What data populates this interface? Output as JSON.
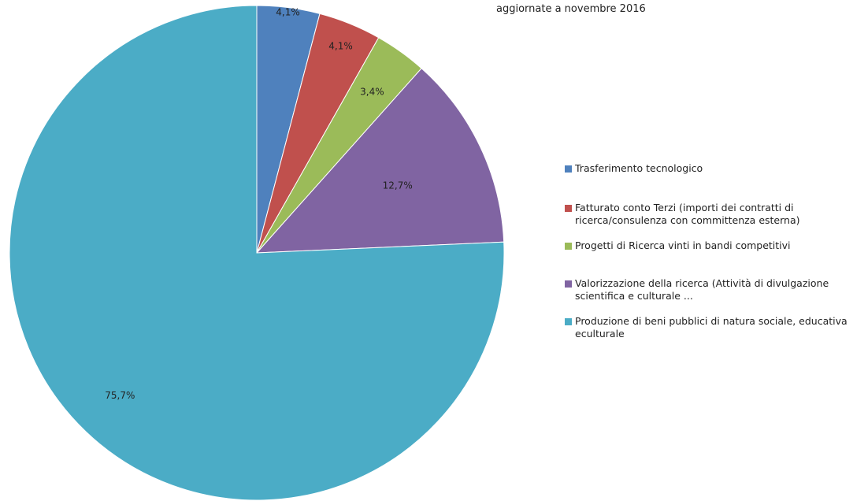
{
  "subtitle": "aggiornate a novembre 2016",
  "chart_data": {
    "type": "pie",
    "title": "",
    "subtitle": "aggiornate a novembre 2016",
    "unit": "%",
    "legend_position": "right",
    "slices": [
      {
        "name": "Trasferimento tecnologico",
        "value": 4.1,
        "label": "4,1%",
        "color": "#4f81bd"
      },
      {
        "name": "Fatturato  conto Terzi (importi dei contratti  di\nricerca/consulenza con committenza  esterna)",
        "value": 4.1,
        "label": "4,1%",
        "color": "#c0504d"
      },
      {
        "name": "Progetti di Ricerca vinti in bandi competitivi",
        "value": 3.4,
        "label": "3,4%",
        "color": "#9bbb59"
      },
      {
        "name": "Valorizzazione  della ricerca (Attività  di divulgazione\nscientifica e culturale ...",
        "value": 12.7,
        "label": "12,7%",
        "color": "#8064a2"
      },
      {
        "name": "Produzione di beni pubblici di natura sociale, educativa\neculturale",
        "value": 75.7,
        "label": "75,7%",
        "color": "#4bacc6"
      }
    ]
  }
}
